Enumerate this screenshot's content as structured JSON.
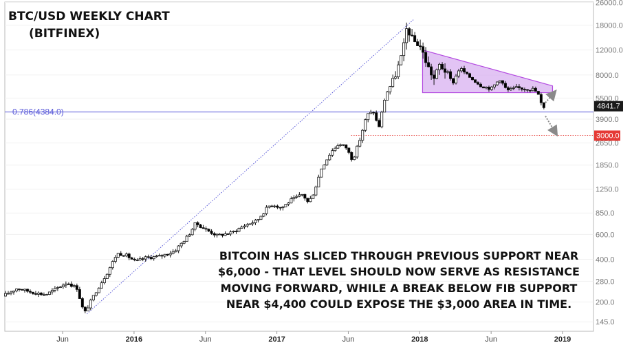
{
  "chart_data": {
    "type": "candlestick",
    "title_line1": "BTC/USD WEEKLY CHART",
    "title_line2": "(BITFINEX)",
    "y_scale": "log",
    "ylim": [
      130,
      26000
    ],
    "y_ticks": [
      "145.0",
      "200.0",
      "280.0",
      "400.0",
      "600.0",
      "850.0",
      "1250.0",
      "1850.0",
      "2650.0",
      "3900.0",
      "5500.0",
      "8000.0",
      "12000.0",
      "18000.0",
      "26000.0"
    ],
    "x_ticks": [
      {
        "label": "Jun",
        "bold": false,
        "pos": 0.125
      },
      {
        "label": "2016",
        "bold": true,
        "pos": 0.25
      },
      {
        "label": "Jun",
        "bold": false,
        "pos": 0.375
      },
      {
        "label": "2017",
        "bold": true,
        "pos": 0.5
      },
      {
        "label": "Jun",
        "bold": false,
        "pos": 0.625
      },
      {
        "label": "2018",
        "bold": true,
        "pos": 0.75
      },
      {
        "label": "Jun",
        "bold": false,
        "pos": 0.875
      },
      {
        "label": "2019",
        "bold": true,
        "pos": 1.0
      }
    ],
    "x_start_year_fraction": 2015.1,
    "price_path": [
      [
        2015.1,
        220
      ],
      [
        2015.2,
        250
      ],
      [
        2015.3,
        235
      ],
      [
        2015.4,
        225
      ],
      [
        2015.55,
        275
      ],
      [
        2015.62,
        250
      ],
      [
        2015.67,
        165
      ],
      [
        2015.75,
        235
      ],
      [
        2015.83,
        320
      ],
      [
        2015.9,
        440
      ],
      [
        2015.96,
        430
      ],
      [
        2016.03,
        385
      ],
      [
        2016.1,
        410
      ],
      [
        2016.2,
        420
      ],
      [
        2016.3,
        455
      ],
      [
        2016.4,
        590
      ],
      [
        2016.45,
        720
      ],
      [
        2016.52,
        650
      ],
      [
        2016.6,
        590
      ],
      [
        2016.7,
        615
      ],
      [
        2016.8,
        700
      ],
      [
        2016.88,
        750
      ],
      [
        2016.96,
        950
      ],
      [
        2017.0,
        970
      ],
      [
        2017.05,
        920
      ],
      [
        2017.12,
        1050
      ],
      [
        2017.2,
        1150
      ],
      [
        2017.24,
        1000
      ],
      [
        2017.28,
        1200
      ],
      [
        2017.33,
        1750
      ],
      [
        2017.4,
        2300
      ],
      [
        2017.45,
        2600
      ],
      [
        2017.5,
        2500
      ],
      [
        2017.55,
        2000
      ],
      [
        2017.6,
        2800
      ],
      [
        2017.65,
        4200
      ],
      [
        2017.7,
        4400
      ],
      [
        2017.73,
        3300
      ],
      [
        2017.78,
        5800
      ],
      [
        2017.84,
        7500
      ],
      [
        2017.9,
        11500
      ],
      [
        2017.93,
        17500
      ],
      [
        2017.97,
        14000
      ],
      [
        2018.02,
        13000
      ],
      [
        2018.08,
        9000
      ],
      [
        2018.12,
        7500
      ],
      [
        2018.16,
        9500
      ],
      [
        2018.2,
        8500
      ],
      [
        2018.25,
        7000
      ],
      [
        2018.3,
        9000
      ],
      [
        2018.35,
        8000
      ],
      [
        2018.45,
        6700
      ],
      [
        2018.52,
        6400
      ],
      [
        2018.58,
        7500
      ],
      [
        2018.63,
        6200
      ],
      [
        2018.7,
        6500
      ],
      [
        2018.75,
        6400
      ],
      [
        2018.82,
        6350
      ],
      [
        2018.86,
        5600
      ],
      [
        2018.875,
        4700
      ]
    ],
    "fib_line": {
      "label": "0.786(4384.0)",
      "value": 4384.0
    },
    "resistance_level": {
      "value": 3000.0
    },
    "triangle": {
      "upper_start_value": 12000,
      "upper_end_value": 6700,
      "lower_value": 6000,
      "t_start": 2018.02,
      "t_end": 2018.93
    },
    "fib_swing": {
      "from": {
        "t": 2015.67,
        "value": 165
      },
      "to": {
        "t": 2017.96,
        "value": 19800
      }
    },
    "last_price_label": "4841.7",
    "target_label": "3000.0",
    "annotation": [
      "BITCOIN HAS SLICED THROUGH PREVIOUS SUPPORT NEAR",
      "$6,000 - THAT LEVEL SHOULD NOW SERVE AS RESISTANCE",
      "MOVING FORWARD, WHILE A BREAK BELOW FIB SUPPORT",
      "NEAR $4,400 COULD EXPOSE THE $3,000 AREA IN TIME."
    ],
    "colors": {
      "up": "#ffffff",
      "down": "#000000",
      "fib": "#5858d8",
      "target": "#e53935",
      "triangle_fill": "#d8b0f0",
      "triangle_edge": "#b34ae0",
      "arrow": "#8a8a8a"
    }
  }
}
